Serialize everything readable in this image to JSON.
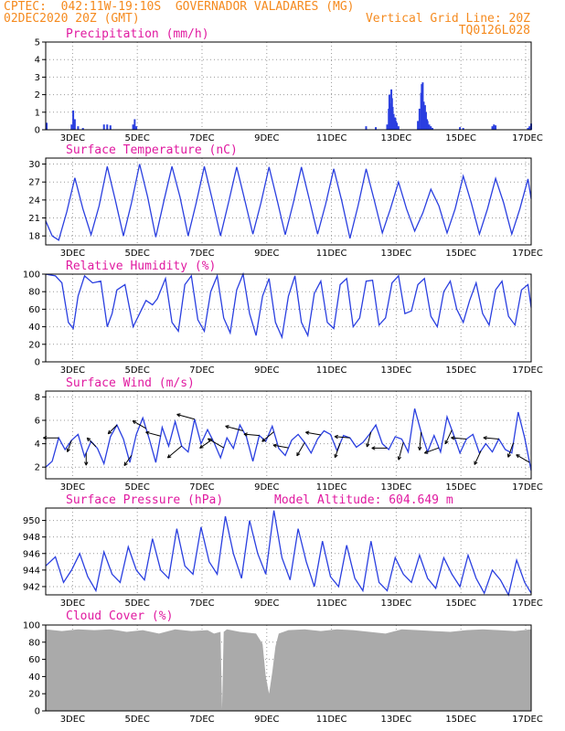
{
  "header": {
    "line1_left": "CPTEC:  042:11W-19:10S  GOVERNADOR VALADARES (MG)",
    "line2_left": "02DEC2020 20Z (GMT)",
    "line2_right": "Vertical Grid Line: 20Z",
    "line3_right": "TQ0126L028"
  },
  "colors": {
    "header": "#f58a1e",
    "title": "#e01aa0",
    "series": "#2a3fe0",
    "cloud": "#aaaaaa",
    "wind_arrow": "#000000"
  },
  "x_axis": {
    "labels": [
      "3DEC",
      "5DEC",
      "7DEC",
      "9DEC",
      "11DEC",
      "13DEC",
      "15DEC",
      "17DEC"
    ]
  },
  "chart_data": [
    {
      "type": "bar",
      "title": "Precipitation (mm/h)",
      "ylim": [
        0,
        5
      ],
      "yticks": [
        "0",
        "1",
        "2",
        "3",
        "4",
        "5"
      ],
      "x_days": [
        2.03,
        2.8,
        2.85,
        2.9,
        3.0,
        3.15,
        3.8,
        3.9,
        4.0,
        4.7,
        4.75,
        4.8,
        11.9,
        12.2,
        12.55,
        12.6,
        12.62,
        12.65,
        12.68,
        12.7,
        12.72,
        12.75,
        12.78,
        12.8,
        12.82,
        12.85,
        12.9,
        13.5,
        13.55,
        13.6,
        13.62,
        13.65,
        13.68,
        13.7,
        13.72,
        13.75,
        13.78,
        13.8,
        13.85,
        13.9,
        13.95,
        14.8,
        14.9,
        15.8,
        15.85,
        15.9,
        16.9,
        16.95,
        17.0
      ],
      "values": [
        0.4,
        0.3,
        1.1,
        0.6,
        0.2,
        0.1,
        0.3,
        0.3,
        0.25,
        0.3,
        0.6,
        0.2,
        0.2,
        0.15,
        0.3,
        1.2,
        2.0,
        1.5,
        2.3,
        1.8,
        1.3,
        0.9,
        0.6,
        0.7,
        0.5,
        0.4,
        0.2,
        0.5,
        1.2,
        2.1,
        2.6,
        2.7,
        1.6,
        1.2,
        1.4,
        1.0,
        0.6,
        0.5,
        0.3,
        0.2,
        0.1,
        0.15,
        0.1,
        0.2,
        0.3,
        0.25,
        0.1,
        0.2,
        0.35
      ]
    },
    {
      "type": "line",
      "title": "Surface Temperature (nC)",
      "ylim": [
        16.5,
        31
      ],
      "yticks": [
        "18",
        "21",
        "24",
        "27",
        "30"
      ],
      "x_days": [
        2.0,
        2.2,
        2.4,
        2.65,
        2.9,
        3.15,
        3.4,
        3.65,
        3.9,
        4.15,
        4.4,
        4.65,
        4.9,
        5.15,
        5.4,
        5.65,
        5.9,
        6.15,
        6.4,
        6.65,
        6.9,
        7.15,
        7.4,
        7.65,
        7.9,
        8.15,
        8.4,
        8.65,
        8.9,
        9.15,
        9.4,
        9.65,
        9.9,
        10.15,
        10.4,
        10.65,
        10.9,
        11.15,
        11.4,
        11.65,
        11.9,
        12.15,
        12.4,
        12.65,
        12.9,
        13.15,
        13.4,
        13.65,
        13.9,
        14.15,
        14.4,
        14.65,
        14.9,
        15.15,
        15.4,
        15.65,
        15.9,
        16.15,
        16.4,
        16.65,
        16.9,
        17.0
      ],
      "values": [
        20.5,
        18.0,
        17.3,
        22.0,
        27.7,
        22.5,
        18.2,
        23.0,
        29.6,
        24.0,
        18.0,
        23.5,
        30.0,
        24.5,
        17.8,
        23.8,
        29.6,
        24.5,
        18.0,
        23.5,
        29.6,
        24.0,
        18.0,
        23.6,
        29.5,
        24.0,
        18.3,
        23.5,
        29.5,
        24.0,
        18.2,
        23.5,
        29.5,
        24.0,
        18.3,
        23.3,
        29.2,
        23.8,
        17.6,
        23.0,
        29.2,
        24.0,
        18.5,
        22.5,
        27.0,
        22.5,
        18.8,
        21.8,
        25.8,
        23.0,
        18.5,
        22.5,
        28.0,
        23.5,
        18.3,
        22.5,
        27.6,
        23.5,
        18.3,
        22.5,
        27.5,
        24.2
      ]
    },
    {
      "type": "line",
      "title": "Relative Humidity (%)",
      "ylim": [
        0,
        100
      ],
      "yticks": [
        "0",
        "20",
        "40",
        "60",
        "80",
        "100"
      ],
      "x_days": [
        2.0,
        2.15,
        2.3,
        2.5,
        2.7,
        2.85,
        3.0,
        3.2,
        3.45,
        3.7,
        3.9,
        4.05,
        4.2,
        4.45,
        4.7,
        4.9,
        5.1,
        5.3,
        5.45,
        5.7,
        5.9,
        6.1,
        6.3,
        6.5,
        6.7,
        6.9,
        7.1,
        7.3,
        7.5,
        7.7,
        7.9,
        8.1,
        8.3,
        8.5,
        8.7,
        8.9,
        9.1,
        9.3,
        9.5,
        9.7,
        9.9,
        10.1,
        10.3,
        10.5,
        10.7,
        10.9,
        11.1,
        11.3,
        11.5,
        11.7,
        11.9,
        12.1,
        12.3,
        12.5,
        12.7,
        12.9,
        13.1,
        13.3,
        13.5,
        13.7,
        13.9,
        14.1,
        14.3,
        14.5,
        14.7,
        14.9,
        15.1,
        15.3,
        15.5,
        15.7,
        15.9,
        16.1,
        16.3,
        16.5,
        16.7,
        16.9,
        17.0
      ],
      "values": [
        100,
        99,
        98,
        90,
        45,
        38,
        75,
        98,
        90,
        92,
        40,
        55,
        82,
        88,
        40,
        55,
        70,
        65,
        72,
        95,
        45,
        35,
        88,
        98,
        48,
        35,
        80,
        98,
        50,
        33,
        82,
        100,
        55,
        30,
        75,
        95,
        45,
        28,
        75,
        98,
        45,
        30,
        78,
        92,
        45,
        38,
        88,
        95,
        40,
        50,
        92,
        93,
        42,
        50,
        90,
        98,
        55,
        58,
        88,
        95,
        52,
        40,
        80,
        92,
        60,
        45,
        70,
        90,
        55,
        42,
        82,
        92,
        52,
        42,
        82,
        88,
        62
      ]
    },
    {
      "type": "line",
      "title": "Surface Wind (m/s)",
      "ylim": [
        1,
        8.5
      ],
      "yticks": [
        "2",
        "4",
        "6",
        "8"
      ],
      "x_days": [
        2.0,
        2.2,
        2.4,
        2.6,
        2.8,
        3.0,
        3.2,
        3.4,
        3.6,
        3.8,
        4.0,
        4.2,
        4.4,
        4.6,
        4.8,
        5.0,
        5.2,
        5.4,
        5.6,
        5.8,
        6.0,
        6.2,
        6.4,
        6.6,
        6.8,
        7.0,
        7.2,
        7.4,
        7.6,
        7.8,
        8.0,
        8.2,
        8.4,
        8.6,
        8.8,
        9.0,
        9.2,
        9.4,
        9.6,
        9.8,
        10.0,
        10.2,
        10.4,
        10.6,
        10.8,
        11.0,
        11.2,
        11.4,
        11.6,
        11.8,
        12.0,
        12.2,
        12.4,
        12.6,
        12.8,
        13.0,
        13.2,
        13.4,
        13.6,
        13.8,
        14.0,
        14.2,
        14.4,
        14.6,
        14.8,
        15.0,
        15.2,
        15.4,
        15.6,
        15.8,
        16.0,
        16.2,
        16.4,
        16.6,
        16.8,
        17.0
      ],
      "values": [
        2.0,
        2.5,
        4.5,
        3.5,
        4.3,
        4.8,
        2.9,
        4.2,
        3.6,
        2.3,
        4.6,
        5.6,
        4.4,
        2.4,
        4.8,
        6.2,
        4.4,
        2.4,
        5.4,
        3.8,
        5.9,
        3.8,
        3.3,
        6.1,
        4.0,
        5.2,
        4.1,
        2.8,
        4.5,
        3.6,
        5.6,
        4.6,
        2.5,
        4.7,
        4.2,
        5.5,
        3.6,
        3.0,
        4.3,
        4.8,
        4.1,
        3.2,
        4.4,
        5.1,
        4.8,
        3.4,
        4.7,
        4.5,
        3.7,
        4.1,
        4.8,
        5.6,
        4.0,
        3.5,
        4.6,
        4.4,
        3.3,
        7.0,
        5.0,
        3.3,
        4.7,
        3.3,
        6.3,
        4.8,
        3.2,
        4.4,
        4.8,
        3.2,
        4.0,
        3.3,
        4.4,
        3.5,
        3.2,
        6.7,
        4.5,
        1.7
      ],
      "arrows": [
        {
          "x_day": 2.4,
          "dir_deg": 270,
          "speed": 4
        },
        {
          "x_day": 2.8,
          "dir_deg": 200,
          "speed": 3
        },
        {
          "x_day": 3.25,
          "dir_deg": 180,
          "speed": 3
        },
        {
          "x_day": 3.55,
          "dir_deg": 315,
          "speed": 3
        },
        {
          "x_day": 4.2,
          "dir_deg": 225,
          "speed": 3
        },
        {
          "x_day": 4.65,
          "dir_deg": 215,
          "speed": 3
        },
        {
          "x_day": 5.1,
          "dir_deg": 300,
          "speed": 4
        },
        {
          "x_day": 5.55,
          "dir_deg": 285,
          "speed": 4
        },
        {
          "x_day": 6.2,
          "dir_deg": 230,
          "speed": 5
        },
        {
          "x_day": 6.6,
          "dir_deg": 285,
          "speed": 5
        },
        {
          "x_day": 7.15,
          "dir_deg": 235,
          "speed": 4
        },
        {
          "x_day": 7.5,
          "dir_deg": 300,
          "speed": 5
        },
        {
          "x_day": 8.1,
          "dir_deg": 285,
          "speed": 5
        },
        {
          "x_day": 8.6,
          "dir_deg": 275,
          "speed": 4
        },
        {
          "x_day": 9.05,
          "dir_deg": 230,
          "speed": 4
        },
        {
          "x_day": 9.5,
          "dir_deg": 280,
          "speed": 4
        },
        {
          "x_day": 10.0,
          "dir_deg": 210,
          "speed": 4
        },
        {
          "x_day": 10.5,
          "dir_deg": 280,
          "speed": 4
        },
        {
          "x_day": 11.1,
          "dir_deg": 200,
          "speed": 4
        },
        {
          "x_day": 11.4,
          "dir_deg": 275,
          "speed": 4
        },
        {
          "x_day": 12.05,
          "dir_deg": 195,
          "speed": 4
        },
        {
          "x_day": 12.55,
          "dir_deg": 270,
          "speed": 4
        },
        {
          "x_day": 13.05,
          "dir_deg": 195,
          "speed": 5
        },
        {
          "x_day": 13.6,
          "dir_deg": 185,
          "speed": 5
        },
        {
          "x_day": 14.15,
          "dir_deg": 250,
          "speed": 4
        },
        {
          "x_day": 14.55,
          "dir_deg": 205,
          "speed": 4
        },
        {
          "x_day": 15.0,
          "dir_deg": 275,
          "speed": 4
        },
        {
          "x_day": 15.45,
          "dir_deg": 205,
          "speed": 4
        },
        {
          "x_day": 16.0,
          "dir_deg": 275,
          "speed": 4
        },
        {
          "x_day": 16.45,
          "dir_deg": 200,
          "speed": 4
        },
        {
          "x_day": 16.95,
          "dir_deg": 300,
          "speed": 4
        }
      ]
    },
    {
      "type": "line",
      "title": "Surface Pressure (hPa)",
      "annotation": "Model Altitude: 604.649 m",
      "ylim": [
        941,
        951.5
      ],
      "yticks": [
        "942",
        "944",
        "946",
        "948",
        "950"
      ],
      "x_days": [
        2.0,
        2.3,
        2.55,
        2.8,
        3.05,
        3.3,
        3.55,
        3.8,
        4.05,
        4.3,
        4.55,
        4.8,
        5.05,
        5.3,
        5.55,
        5.8,
        6.05,
        6.3,
        6.55,
        6.8,
        7.05,
        7.3,
        7.55,
        7.8,
        8.05,
        8.3,
        8.55,
        8.8,
        9.05,
        9.3,
        9.55,
        9.8,
        10.05,
        10.3,
        10.55,
        10.8,
        11.05,
        11.3,
        11.55,
        11.8,
        12.05,
        12.3,
        12.55,
        12.8,
        13.05,
        13.3,
        13.55,
        13.8,
        14.05,
        14.3,
        14.55,
        14.8,
        15.05,
        15.3,
        15.55,
        15.8,
        16.05,
        16.3,
        16.55,
        16.8,
        17.0
      ],
      "values": [
        944.5,
        945.6,
        942.5,
        944.0,
        946.0,
        943.2,
        941.5,
        946.2,
        943.5,
        942.5,
        946.8,
        944.0,
        942.8,
        947.8,
        944.0,
        943.0,
        949.0,
        944.5,
        943.5,
        949.2,
        945.0,
        943.5,
        950.5,
        946.0,
        943.0,
        950.0,
        946.0,
        943.5,
        951.2,
        945.5,
        942.8,
        949.0,
        945.0,
        942.0,
        947.5,
        943.2,
        942.0,
        947.0,
        943.0,
        941.5,
        947.5,
        942.5,
        941.5,
        945.5,
        943.5,
        942.5,
        945.8,
        943.0,
        941.8,
        945.5,
        943.5,
        942.0,
        945.8,
        943.0,
        941.2,
        944.0,
        942.8,
        941.0,
        945.2,
        942.5,
        941.2
      ]
    },
    {
      "type": "area",
      "title": "Cloud Cover (%)",
      "ylim": [
        0,
        100
      ],
      "yticks": [
        "0",
        "20",
        "40",
        "60",
        "80",
        "100"
      ],
      "x_days": [
        2.0,
        2.5,
        3.0,
        3.5,
        4.0,
        4.5,
        5.0,
        5.5,
        6.0,
        6.5,
        7.0,
        7.2,
        7.4,
        7.45,
        7.5,
        7.6,
        8.0,
        8.5,
        8.7,
        8.8,
        8.9,
        9.0,
        9.1,
        9.2,
        9.5,
        10.0,
        10.5,
        11.0,
        11.5,
        12.0,
        12.5,
        13.0,
        13.5,
        14.0,
        14.5,
        15.0,
        15.5,
        16.0,
        16.5,
        17.0
      ],
      "values": [
        95,
        93,
        95,
        94,
        95,
        92,
        94,
        90,
        95,
        93,
        94,
        90,
        92,
        2,
        92,
        95,
        92,
        90,
        78,
        40,
        20,
        45,
        75,
        90,
        94,
        95,
        93,
        95,
        94,
        92,
        90,
        95,
        94,
        93,
        92,
        94,
        95,
        94,
        93,
        95
      ]
    }
  ]
}
